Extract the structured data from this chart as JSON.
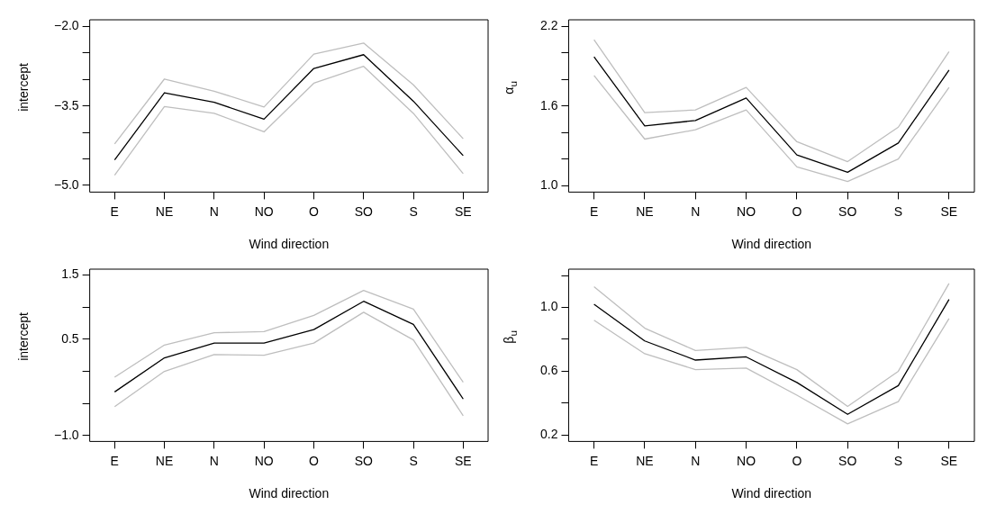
{
  "chart_data": [
    {
      "type": "line",
      "categories": [
        "E",
        "NE",
        "N",
        "NO",
        "O",
        "SO",
        "S",
        "SE"
      ],
      "xlabel": "Wind direction",
      "ylabel": "intercept",
      "ylim": [
        -5.13,
        -1.87
      ],
      "yticks": [
        {
          "value": -5.0,
          "label": "−5.0"
        },
        {
          "value": -4.5,
          "label": null
        },
        {
          "value": -4.0,
          "label": null
        },
        {
          "value": -3.5,
          "label": "−3.5"
        },
        {
          "value": -3.0,
          "label": null
        },
        {
          "value": -2.5,
          "label": null
        },
        {
          "value": -2.0,
          "label": "−2.0"
        }
      ],
      "grid": false,
      "legend": false,
      "line_style": "solid",
      "marker": "none",
      "series": [
        {
          "color": "#bebebe",
          "values": [
            -4.22,
            -2.99,
            -3.22,
            -3.52,
            -2.52,
            -2.31,
            -3.1,
            -4.12
          ]
        },
        {
          "color": "#bebebe",
          "values": [
            -4.81,
            -3.51,
            -3.64,
            -3.99,
            -3.07,
            -2.75,
            -3.64,
            -4.78
          ]
        },
        {
          "color": "#000000",
          "values": [
            -4.52,
            -3.25,
            -3.43,
            -3.75,
            -2.79,
            -2.53,
            -3.41,
            -4.44
          ]
        }
      ]
    },
    {
      "type": "line",
      "categories": [
        "E",
        "NE",
        "N",
        "NO",
        "O",
        "SO",
        "S",
        "SE"
      ],
      "xlabel": "Wind direction",
      "ylabel": "α$_{u}$",
      "ylim": [
        0.95,
        2.25
      ],
      "yticks": [
        {
          "value": 1.0,
          "label": "1.0"
        },
        {
          "value": 1.2,
          "label": null
        },
        {
          "value": 1.4,
          "label": null
        },
        {
          "value": 1.6,
          "label": "1.6"
        },
        {
          "value": 1.8,
          "label": null
        },
        {
          "value": 2.0,
          "label": null
        },
        {
          "value": 2.2,
          "label": "2.2"
        }
      ],
      "grid": false,
      "legend": false,
      "line_style": "solid",
      "marker": "none",
      "series": [
        {
          "color": "#bebebe",
          "values": [
            2.1,
            1.55,
            1.57,
            1.74,
            1.33,
            1.18,
            1.44,
            2.01
          ]
        },
        {
          "color": "#bebebe",
          "values": [
            1.83,
            1.35,
            1.42,
            1.57,
            1.14,
            1.03,
            1.2,
            1.74
          ]
        },
        {
          "color": "#000000",
          "values": [
            1.97,
            1.45,
            1.49,
            1.66,
            1.23,
            1.1,
            1.32,
            1.87
          ]
        }
      ]
    },
    {
      "type": "line",
      "categories": [
        "E",
        "NE",
        "N",
        "NO",
        "O",
        "SO",
        "S",
        "SE"
      ],
      "xlabel": "Wind direction",
      "ylabel": "intercept",
      "ylim": [
        -1.09,
        1.59
      ],
      "yticks": [
        {
          "value": -1.0,
          "label": "−1.0"
        },
        {
          "value": -0.5,
          "label": null
        },
        {
          "value": 0.0,
          "label": null
        },
        {
          "value": 0.5,
          "label": "0.5"
        },
        {
          "value": 1.0,
          "label": null
        },
        {
          "value": 1.5,
          "label": "1.5"
        }
      ],
      "grid": false,
      "legend": false,
      "line_style": "solid",
      "marker": "none",
      "series": [
        {
          "color": "#bebebe",
          "values": [
            -0.09,
            0.41,
            0.6,
            0.62,
            0.87,
            1.26,
            0.97,
            -0.17
          ]
        },
        {
          "color": "#bebebe",
          "values": [
            -0.55,
            0.0,
            0.26,
            0.25,
            0.44,
            0.92,
            0.49,
            -0.69
          ]
        },
        {
          "color": "#000000",
          "values": [
            -0.32,
            0.21,
            0.44,
            0.44,
            0.65,
            1.09,
            0.73,
            -0.43
          ]
        }
      ]
    },
    {
      "type": "line",
      "categories": [
        "E",
        "NE",
        "N",
        "NO",
        "O",
        "SO",
        "S",
        "SE"
      ],
      "xlabel": "Wind direction",
      "ylabel": "β$_{u}$",
      "ylim": [
        0.16,
        1.24
      ],
      "yticks": [
        {
          "value": 0.2,
          "label": "0.2"
        },
        {
          "value": 0.4,
          "label": null
        },
        {
          "value": 0.6,
          "label": "0.6"
        },
        {
          "value": 0.8,
          "label": null
        },
        {
          "value": 1.0,
          "label": "1.0"
        },
        {
          "value": 1.2,
          "label": null
        }
      ],
      "grid": false,
      "legend": false,
      "line_style": "solid",
      "marker": "none",
      "series": [
        {
          "color": "#bebebe",
          "values": [
            1.13,
            0.87,
            0.73,
            0.75,
            0.61,
            0.38,
            0.6,
            1.15
          ]
        },
        {
          "color": "#bebebe",
          "values": [
            0.92,
            0.71,
            0.61,
            0.62,
            0.45,
            0.27,
            0.41,
            0.93
          ]
        },
        {
          "color": "#000000",
          "values": [
            1.02,
            0.79,
            0.67,
            0.69,
            0.53,
            0.33,
            0.51,
            1.05
          ]
        }
      ]
    }
  ]
}
